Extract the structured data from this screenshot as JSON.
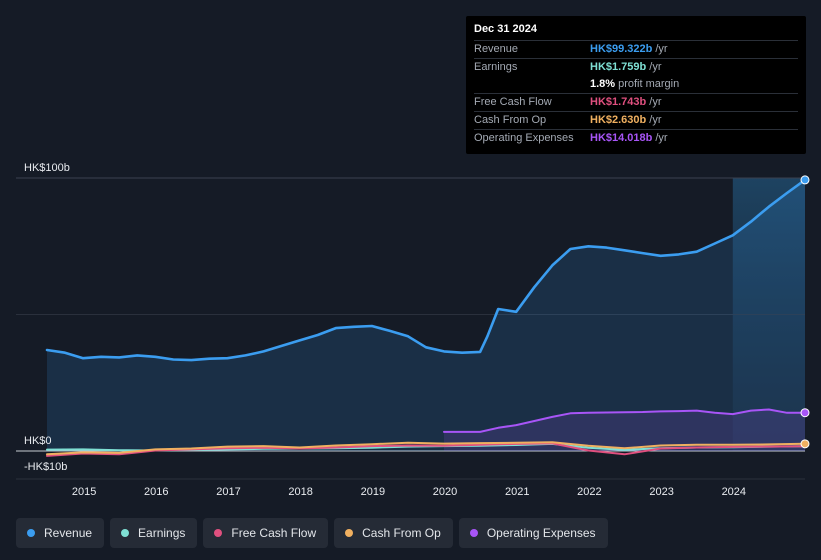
{
  "tooltip": {
    "date": "Dec 31 2024",
    "rows": [
      {
        "label": "Revenue",
        "value": "HK$99.322b",
        "unit": "/yr",
        "color": "#3b9df0"
      },
      {
        "label": "Earnings",
        "value": "HK$1.759b",
        "unit": "/yr",
        "color": "#7fe0d4"
      },
      {
        "label": "",
        "value": "1.8%",
        "unit": "profit margin",
        "color": "#ffffff"
      },
      {
        "label": "Free Cash Flow",
        "value": "HK$1.743b",
        "unit": "/yr",
        "color": "#e0507f"
      },
      {
        "label": "Cash From Op",
        "value": "HK$2.630b",
        "unit": "/yr",
        "color": "#f0b060"
      },
      {
        "label": "Operating Expenses",
        "value": "HK$14.018b",
        "unit": "/yr",
        "color": "#a855f7"
      }
    ]
  },
  "legend": [
    {
      "label": "Revenue",
      "color": "#3b9df0"
    },
    {
      "label": "Earnings",
      "color": "#7fe0d4"
    },
    {
      "label": "Free Cash Flow",
      "color": "#e0507f"
    },
    {
      "label": "Cash From Op",
      "color": "#f0b060"
    },
    {
      "label": "Operating Expenses",
      "color": "#a855f7"
    }
  ],
  "chart_data": {
    "type": "area",
    "title": "",
    "xlabel": "",
    "ylabel": "",
    "ylim": [
      -10,
      100
    ],
    "xlim": [
      2014.5,
      2025.0
    ],
    "y_tick_labels": [
      {
        "value": 100,
        "label": "HK$100b"
      },
      {
        "value": 0,
        "label": "HK$0"
      },
      {
        "value": -10,
        "label": "-HK$10b"
      }
    ],
    "x_ticks": [
      2015,
      2016,
      2017,
      2018,
      2019,
      2020,
      2021,
      2022,
      2023,
      2024
    ],
    "x_tick_labels": [
      "2015",
      "2016",
      "2017",
      "2018",
      "2019",
      "2020",
      "2021",
      "2022",
      "2023",
      "2024"
    ],
    "highlight_from": 2024.0,
    "series": [
      {
        "name": "Revenue",
        "color": "#3b9df0",
        "fill": true,
        "x": [
          2014.5,
          2014.75,
          2015.0,
          2015.25,
          2015.5,
          2015.75,
          2016.0,
          2016.25,
          2016.5,
          2016.75,
          2017.0,
          2017.25,
          2017.5,
          2017.75,
          2018.0,
          2018.25,
          2018.5,
          2018.75,
          2019.0,
          2019.25,
          2019.5,
          2019.75,
          2020.0,
          2020.25,
          2020.5,
          2020.6,
          2020.75,
          2021.0,
          2021.25,
          2021.5,
          2021.75,
          2022.0,
          2022.25,
          2022.5,
          2022.75,
          2023.0,
          2023.25,
          2023.5,
          2023.75,
          2024.0,
          2024.25,
          2024.5,
          2024.75,
          2025.0
        ],
        "values": [
          37,
          36,
          34,
          34.5,
          34.3,
          35,
          34.5,
          33.5,
          33.3,
          33.8,
          34,
          35,
          36.5,
          38.5,
          40.5,
          42.5,
          45,
          45.5,
          45.8,
          44,
          42,
          38,
          36.5,
          36,
          36.3,
          42,
          52,
          51,
          60,
          68,
          74,
          75,
          74.5,
          73.5,
          72.5,
          71.5,
          72,
          73,
          76,
          79,
          84,
          89.5,
          94.5,
          99.3
        ]
      },
      {
        "name": "Earnings",
        "color": "#7fe0d4",
        "fill": false,
        "x": [
          2014.5,
          2015.0,
          2015.5,
          2016.0,
          2016.5,
          2017.0,
          2017.5,
          2018.0,
          2018.5,
          2019.0,
          2019.5,
          2020.0,
          2020.5,
          2021.0,
          2021.5,
          2022.0,
          2022.5,
          2023.0,
          2023.5,
          2024.0,
          2024.5,
          2025.0
        ],
        "values": [
          0.5,
          0.6,
          0.3,
          0.2,
          0.4,
          0.6,
          0.8,
          0.9,
          1.0,
          1.2,
          1.6,
          1.8,
          1.9,
          2.2,
          2.6,
          1.2,
          0.4,
          1.0,
          1.3,
          1.4,
          1.6,
          1.76
        ]
      },
      {
        "name": "Free Cash Flow",
        "color": "#e0507f",
        "fill": false,
        "x": [
          2014.5,
          2015.0,
          2015.5,
          2016.0,
          2016.5,
          2017.0,
          2017.5,
          2018.0,
          2018.5,
          2019.0,
          2019.5,
          2020.0,
          2020.5,
          2021.0,
          2021.5,
          2022.0,
          2022.5,
          2023.0,
          2023.5,
          2024.0,
          2024.5,
          2025.0
        ],
        "values": [
          -1.8,
          -0.9,
          -1.2,
          0.2,
          0.6,
          1.0,
          1.2,
          0.9,
          1.3,
          1.8,
          2.0,
          1.9,
          2.3,
          2.6,
          2.8,
          0.2,
          -1.2,
          0.9,
          1.3,
          1.5,
          1.6,
          1.74
        ]
      },
      {
        "name": "Cash From Op",
        "color": "#f0b060",
        "fill": false,
        "x": [
          2014.5,
          2015.0,
          2015.5,
          2016.0,
          2016.5,
          2017.0,
          2017.5,
          2018.0,
          2018.5,
          2019.0,
          2019.5,
          2020.0,
          2020.5,
          2021.0,
          2021.5,
          2022.0,
          2022.5,
          2023.0,
          2023.5,
          2024.0,
          2024.5,
          2025.0
        ],
        "values": [
          -1.2,
          -0.5,
          -0.7,
          0.6,
          0.9,
          1.6,
          1.8,
          1.3,
          2.0,
          2.5,
          3.0,
          2.7,
          2.9,
          3.0,
          3.2,
          1.9,
          1.0,
          2.0,
          2.3,
          2.3,
          2.4,
          2.63
        ]
      },
      {
        "name": "Operating Expenses",
        "color": "#a855f7",
        "fill": true,
        "x": [
          2020.0,
          2020.25,
          2020.5,
          2020.75,
          2021.0,
          2021.25,
          2021.5,
          2021.75,
          2022.0,
          2022.25,
          2022.5,
          2022.75,
          2023.0,
          2023.25,
          2023.5,
          2023.75,
          2024.0,
          2024.25,
          2024.5,
          2024.75,
          2025.0
        ],
        "values": [
          7,
          7,
          7,
          8.5,
          9.5,
          11,
          12.5,
          13.8,
          14.0,
          14.1,
          14.2,
          14.3,
          14.5,
          14.6,
          14.8,
          14.0,
          13.5,
          14.8,
          15.2,
          14.0,
          14.02
        ]
      }
    ]
  }
}
